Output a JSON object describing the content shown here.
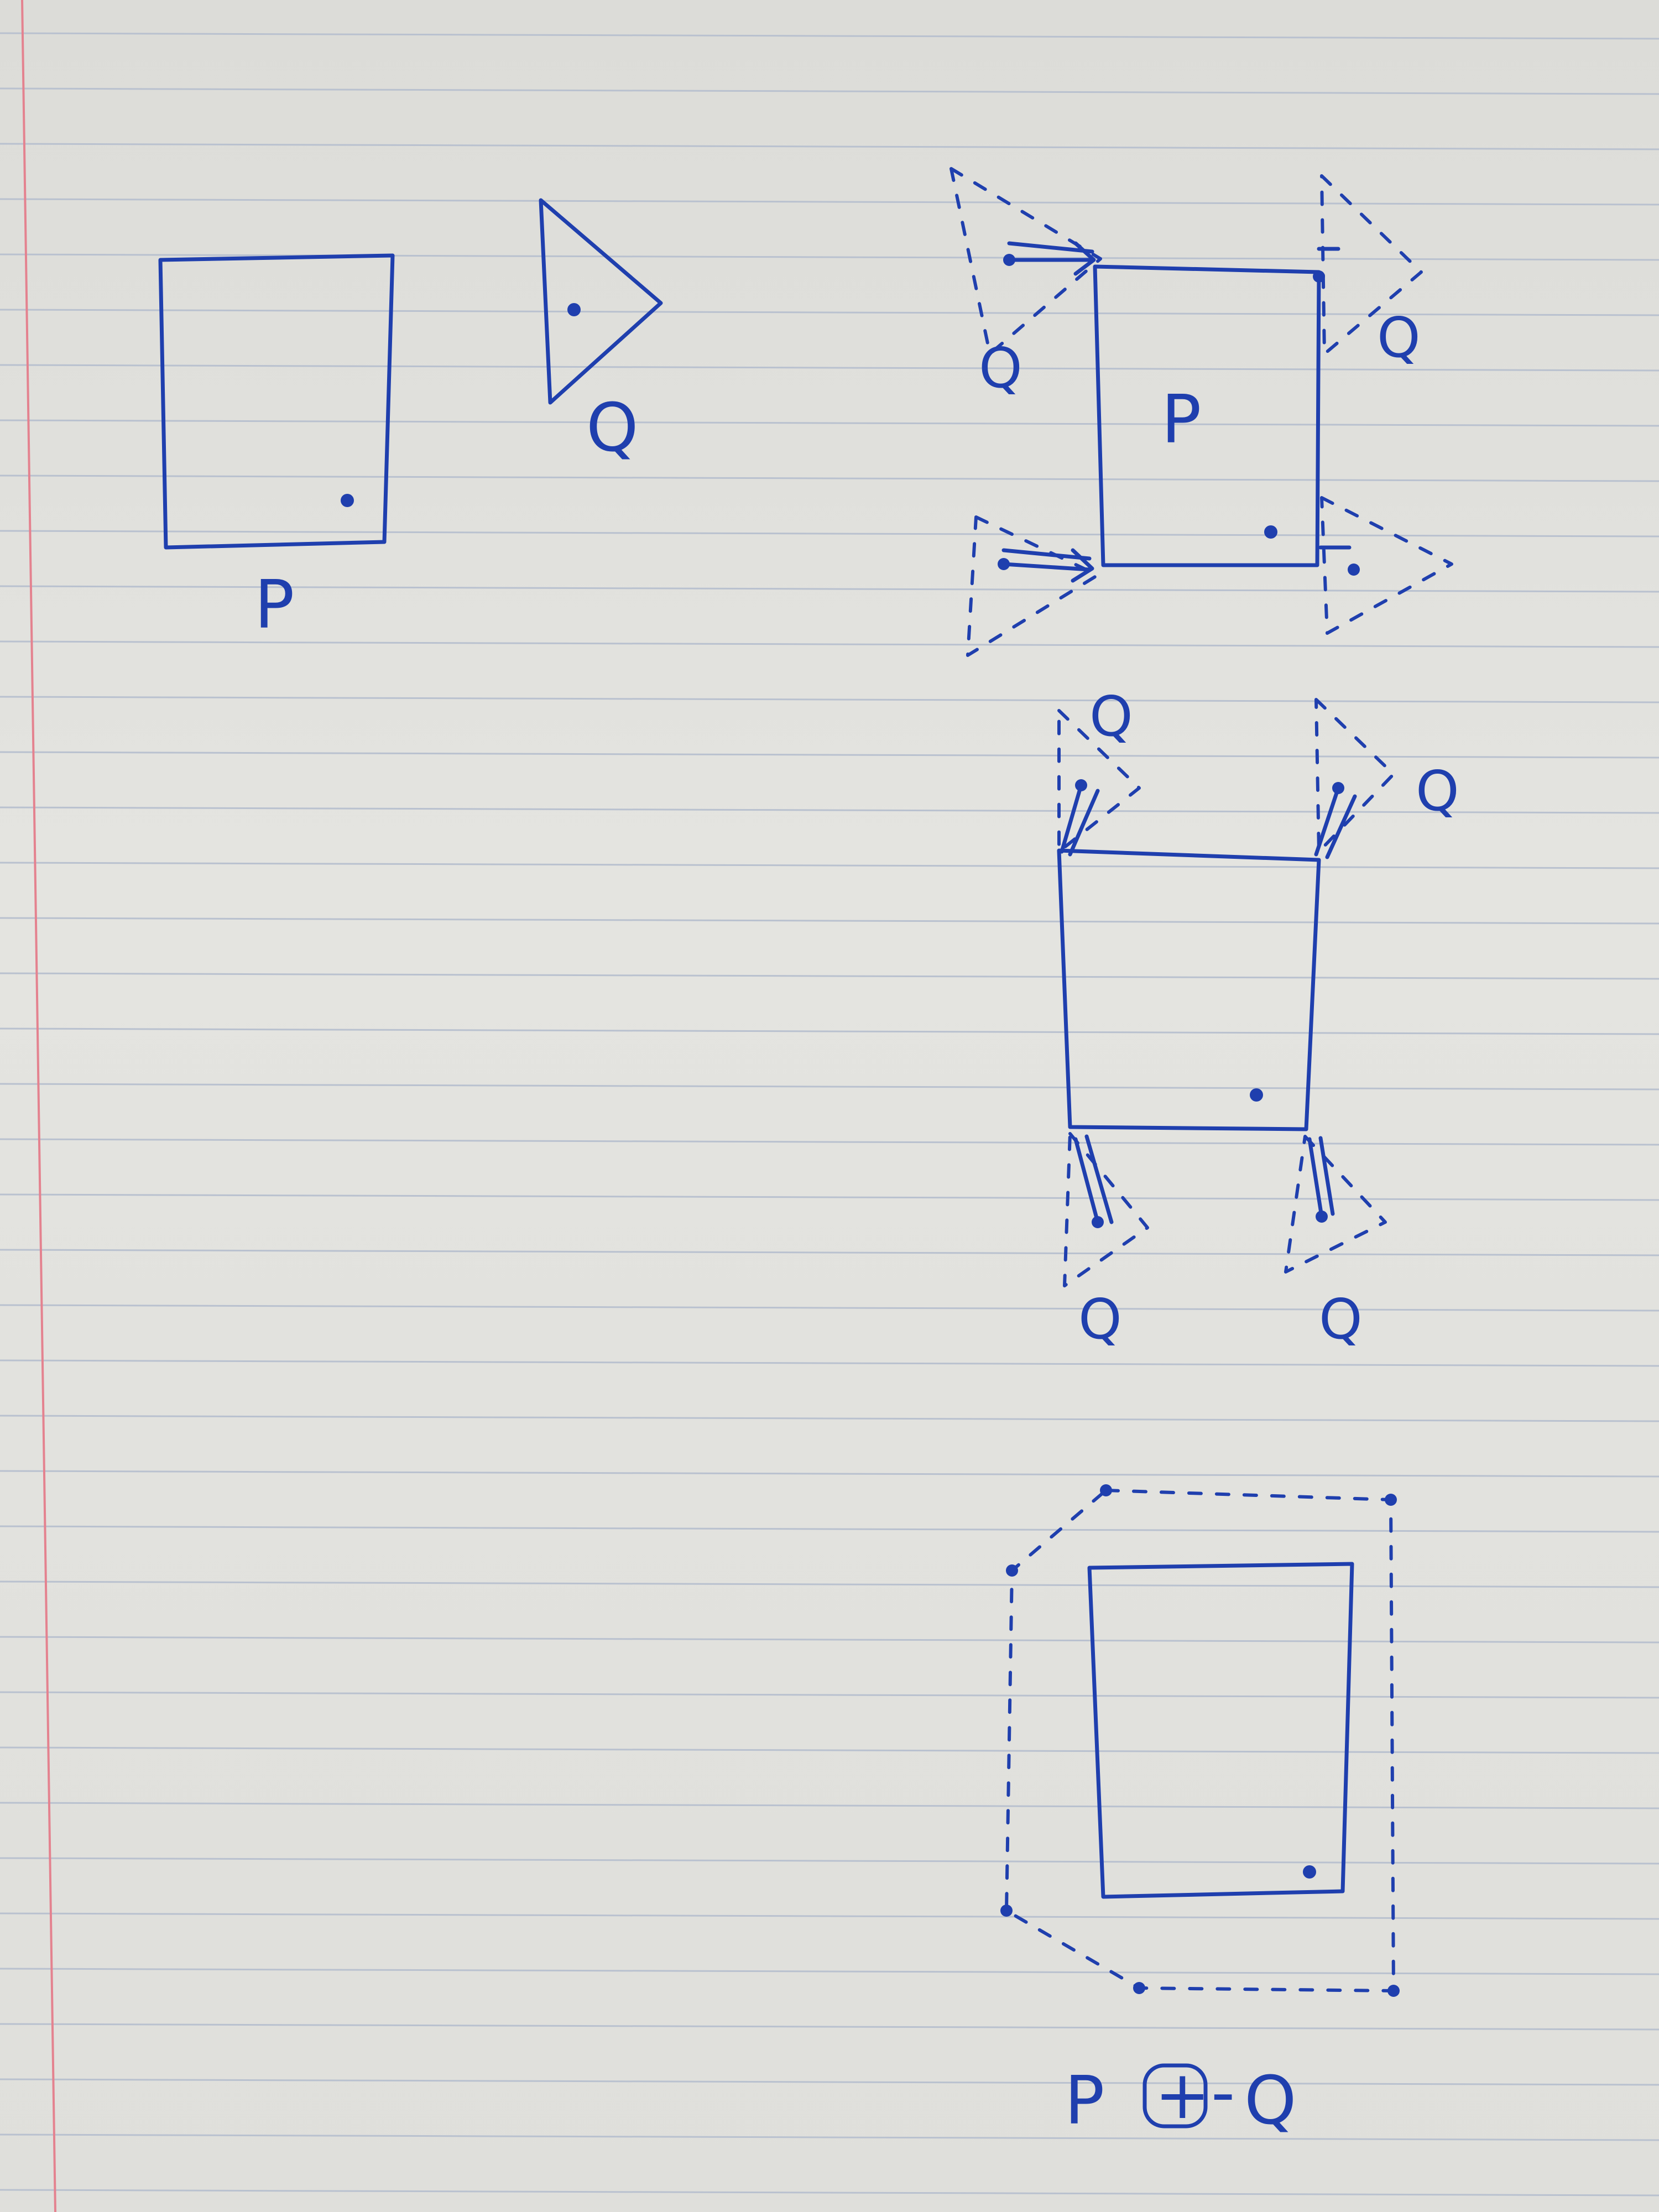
{
  "labels": {
    "p_original": "P",
    "q_original": "Q",
    "p_in_shift": "P",
    "q_shift": "Q",
    "q_shift2": "Q",
    "sum_p": "P",
    "sum_op": "+",
    "sum_neg": "-",
    "sum_q": "Q"
  },
  "colors": {
    "ink": "#1f3fae",
    "paper": "#dcdcd8",
    "margin_line": "#e4828f",
    "ruled_line": "#b9c1cf"
  }
}
